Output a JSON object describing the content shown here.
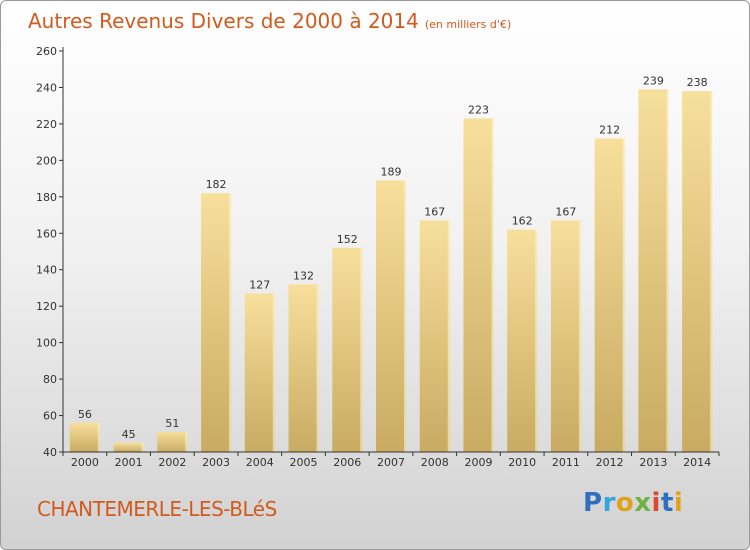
{
  "header": {
    "title": "Autres Revenus Divers de 2000 à 2014",
    "unit": "(en milliers d'€)"
  },
  "footer": {
    "city": "CHANTEMERLE-LES-BLéS",
    "logo_letters": [
      "P",
      "r",
      "o",
      "x",
      "i",
      "t",
      "i"
    ]
  },
  "colors": {
    "title": "#d4591c",
    "bar_top": "#f7df9c",
    "bar_bottom": "#c9ab62",
    "axis": "#333333"
  },
  "chart_data": {
    "type": "bar",
    "title": "Autres Revenus Divers de 2000 à 2014",
    "xlabel": "",
    "ylabel": "",
    "categories": [
      "2000",
      "2001",
      "2002",
      "2003",
      "2004",
      "2005",
      "2006",
      "2007",
      "2008",
      "2009",
      "2010",
      "2011",
      "2012",
      "2013",
      "2014"
    ],
    "values": [
      56,
      45,
      51,
      182,
      127,
      132,
      152,
      189,
      167,
      223,
      162,
      167,
      212,
      239,
      238
    ],
    "ylim": [
      40,
      260
    ],
    "yticks": [
      40,
      60,
      80,
      100,
      120,
      140,
      160,
      180,
      200,
      220,
      240,
      260
    ],
    "grid": false,
    "data_labels": true
  }
}
